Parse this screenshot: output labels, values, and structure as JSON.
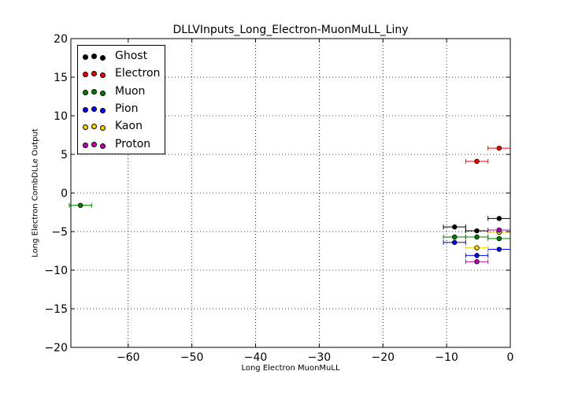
{
  "chart_data": {
    "type": "scatter",
    "title": "DLLVInputs_Long_Electron-MuonMuLL_Liny",
    "xlabel": "Long Electron MuonMuLL",
    "ylabel": "Long Electron CombDLLe Output",
    "xlim": [
      -69,
      0
    ],
    "ylim": [
      -20,
      20
    ],
    "xticks": [
      -60,
      -50,
      -40,
      -30,
      -20,
      -10,
      0
    ],
    "yticks": [
      20,
      15,
      10,
      5,
      0,
      -5,
      -10,
      -15,
      -20
    ],
    "xtick_labels": [
      "−60",
      "−50",
      "−40",
      "−30",
      "−20",
      "−10",
      "0"
    ],
    "ytick_labels": [
      "20",
      "15",
      "10",
      "5",
      "0",
      "−5",
      "−10",
      "−15",
      "−20"
    ],
    "grid": true,
    "legend_position": "top-left",
    "series": [
      {
        "name": "Ghost",
        "color": "#000000",
        "points": [
          {
            "x": -8.75,
            "y": -4.4,
            "xerr": 1.75
          },
          {
            "x": -5.25,
            "y": -4.9,
            "xerr": 1.75
          },
          {
            "x": -1.75,
            "y": -3.3,
            "xerr": 1.75
          }
        ]
      },
      {
        "name": "Electron",
        "color": "#ff0000",
        "points": [
          {
            "x": -5.25,
            "y": 4.1,
            "xerr": 1.75
          },
          {
            "x": -1.75,
            "y": 5.8,
            "xerr": 1.75
          }
        ]
      },
      {
        "name": "Muon",
        "color": "#008000",
        "points": [
          {
            "x": -67.5,
            "y": -1.6,
            "xerr": 1.75
          },
          {
            "x": -8.75,
            "y": -5.7,
            "xerr": 1.75
          },
          {
            "x": -5.25,
            "y": -5.7,
            "xerr": 1.75
          },
          {
            "x": -1.75,
            "y": -5.9,
            "xerr": 1.75
          }
        ]
      },
      {
        "name": "Pion",
        "color": "#0000ff",
        "points": [
          {
            "x": -8.75,
            "y": -6.4,
            "xerr": 1.75
          },
          {
            "x": -5.25,
            "y": -8.1,
            "xerr": 1.75
          },
          {
            "x": -1.75,
            "y": -7.3,
            "xerr": 1.75
          }
        ]
      },
      {
        "name": "Kaon",
        "color": "#ffd700",
        "points": [
          {
            "x": -5.25,
            "y": -7.1,
            "xerr": 1.75
          },
          {
            "x": -1.75,
            "y": -5.1,
            "xerr": 1.75
          }
        ]
      },
      {
        "name": "Proton",
        "color": "#bf00bf",
        "points": [
          {
            "x": -5.25,
            "y": -8.9,
            "xerr": 1.75
          },
          {
            "x": -1.75,
            "y": -4.8,
            "xerr": 1.75
          }
        ]
      }
    ]
  }
}
